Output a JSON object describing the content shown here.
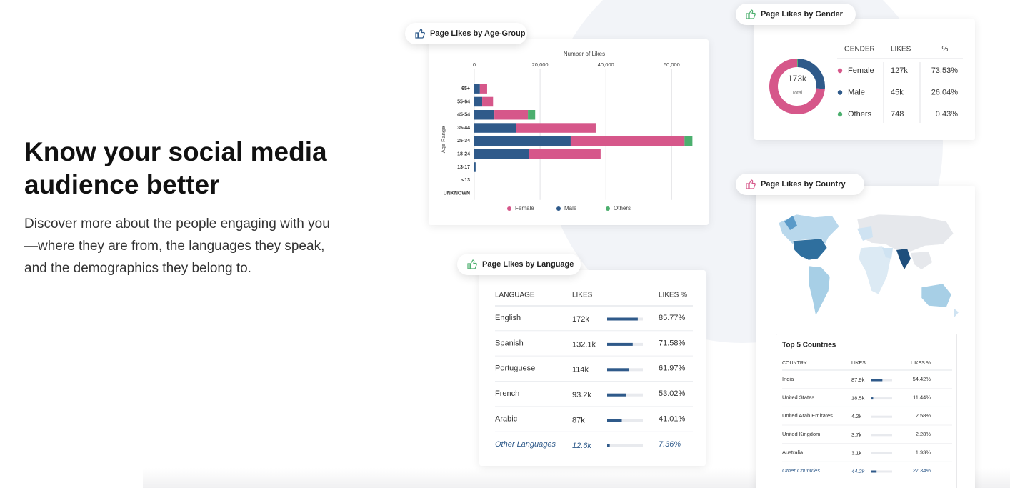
{
  "hero": {
    "title": "Know your social media audience better",
    "description": "Discover more about the people engaging with you—where they are from, the languages they speak, and the demographics they belong to."
  },
  "chart_data": [
    {
      "type": "bar",
      "orientation": "horizontal",
      "stacked": true,
      "title": "Page Likes by Age-Group",
      "x_label": "Number of Likes",
      "y_label": "Age Range",
      "categories": [
        "65+",
        "55-64",
        "45-54",
        "35-44",
        "25-34",
        "18-24",
        "13-17",
        "<13",
        "UNKNOWN"
      ],
      "series": [
        {
          "name": "Female",
          "color": "#d6578a",
          "values": [
            2200,
            3300,
            10200,
            24300,
            34600,
            21700,
            0,
            0,
            0
          ]
        },
        {
          "name": "Male",
          "color": "#2f5a8a",
          "values": [
            1700,
            2400,
            6100,
            12600,
            29300,
            16700,
            400,
            0,
            0
          ]
        },
        {
          "name": "Others",
          "color": "#4caf6e",
          "values": [
            0,
            0,
            2200,
            200,
            2400,
            0,
            0,
            0,
            0
          ]
        }
      ],
      "xlim": [
        0,
        66000
      ],
      "xticks": [
        0,
        {
          "value": 20000,
          "label": "20,000"
        },
        {
          "value": 40000,
          "label": "40,000"
        },
        {
          "value": 60000,
          "label": "60,000"
        }
      ],
      "grid": true,
      "legend": "bottom"
    },
    {
      "type": "pie",
      "donut": true,
      "title": "Page Likes by Gender",
      "center_label": "173k",
      "center_sublabel": "Total",
      "columns": [
        "GENDER",
        "LIKES",
        "%"
      ],
      "categories": [
        "Female",
        "Male",
        "Others"
      ],
      "colors": [
        "#d6578a",
        "#2f5a8a",
        "#4caf6e"
      ],
      "likes": [
        127000,
        45000,
        748
      ],
      "likes_labels": [
        "127k",
        "45k",
        "748"
      ],
      "values": [
        73.53,
        26.04,
        0.43
      ],
      "value_labels": [
        "73.53%",
        "26.04%",
        "0.43%"
      ]
    }
  ],
  "language": {
    "title": "Page Likes by Language",
    "columns": [
      "LANGUAGE",
      "LIKES",
      "LIKES %"
    ],
    "bar_color": "#2f5a8a",
    "rows": [
      {
        "name": "English",
        "likes": "172k",
        "percent": 85.77,
        "percent_label": "85.77%"
      },
      {
        "name": "Spanish",
        "likes": "132.1k",
        "percent": 71.58,
        "percent_label": "71.58%"
      },
      {
        "name": "Portuguese",
        "likes": "114k",
        "percent": 61.97,
        "percent_label": "61.97%"
      },
      {
        "name": "French",
        "likes": "93.2k",
        "percent": 53.02,
        "percent_label": "53.02%"
      },
      {
        "name": "Arabic",
        "likes": "87k",
        "percent": 41.01,
        "percent_label": "41.01%"
      },
      {
        "name": "Other Languages",
        "likes": "12.6k",
        "percent": 7.36,
        "percent_label": "7.36%"
      }
    ]
  },
  "country": {
    "title": "Page Likes by Country",
    "table_title": "Top 5 Countries",
    "columns": [
      "COUNTRY",
      "LIKES",
      "LIKES %"
    ],
    "bar_color": "#2f5a8a",
    "rows": [
      {
        "name": "India",
        "likes": "87.9k",
        "percent": 54.42,
        "percent_label": "54.42%"
      },
      {
        "name": "United States",
        "likes": "18.5k",
        "percent": 11.44,
        "percent_label": "11.44%"
      },
      {
        "name": "United Arab Emirates",
        "likes": "4.2k",
        "percent": 2.58,
        "percent_label": "2.58%"
      },
      {
        "name": "United Kingdom",
        "likes": "3.7k",
        "percent": 2.28,
        "percent_label": "2.28%"
      },
      {
        "name": "Australia",
        "likes": "3.1k",
        "percent": 1.93,
        "percent_label": "1.93%"
      },
      {
        "name": "Other Countries",
        "likes": "44.2k",
        "percent": 27.34,
        "percent_label": "27.34%"
      }
    ]
  }
}
